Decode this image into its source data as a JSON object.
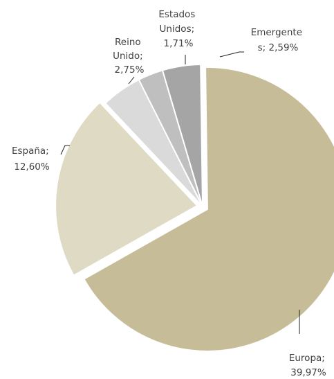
{
  "chart_data": {
    "type": "pie",
    "title": "",
    "slices": [
      {
        "label_lines": [
          "Europa;",
          "39,97%"
        ],
        "value": 39.97,
        "color": "#c6bd98"
      },
      {
        "label_lines": [
          "España;",
          "12,60%"
        ],
        "value": 12.6,
        "color": "#dedac4"
      },
      {
        "label_lines": [
          "Reino",
          "Unido;",
          "2,75%"
        ],
        "value": 2.75,
        "color": "#dadada"
      },
      {
        "label_lines": [
          "Estados",
          "Unidos;",
          "1,71%"
        ],
        "value": 1.71,
        "color": "#bfbfbf"
      },
      {
        "label_lines": [
          "Emergente",
          "s; 2,59%"
        ],
        "value": 2.59,
        "color": "#a5a5a5"
      }
    ]
  }
}
